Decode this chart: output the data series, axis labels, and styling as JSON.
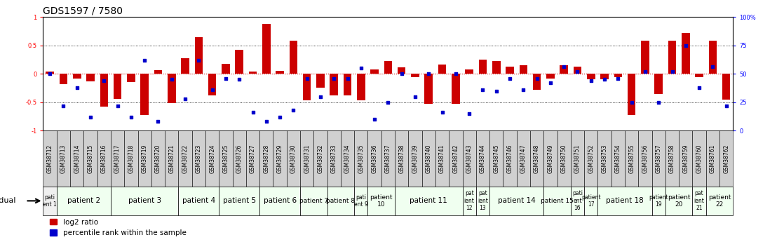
{
  "title": "GDS1597 / 7580",
  "samples": [
    "GSM38712",
    "GSM38713",
    "GSM38714",
    "GSM38715",
    "GSM38716",
    "GSM38717",
    "GSM38718",
    "GSM38719",
    "GSM38720",
    "GSM38721",
    "GSM38722",
    "GSM38723",
    "GSM38724",
    "GSM38725",
    "GSM38726",
    "GSM38727",
    "GSM38728",
    "GSM38729",
    "GSM38730",
    "GSM38731",
    "GSM38732",
    "GSM38733",
    "GSM38734",
    "GSM38735",
    "GSM38736",
    "GSM38737",
    "GSM38738",
    "GSM38739",
    "GSM38740",
    "GSM38741",
    "GSM38742",
    "GSM38743",
    "GSM38744",
    "GSM38745",
    "GSM38746",
    "GSM38747",
    "GSM38748",
    "GSM38749",
    "GSM38750",
    "GSM38751",
    "GSM38752",
    "GSM38753",
    "GSM38754",
    "GSM38755",
    "GSM38756",
    "GSM38757",
    "GSM38758",
    "GSM38759",
    "GSM38760",
    "GSM38761",
    "GSM38762"
  ],
  "log2_ratio": [
    0.04,
    -0.18,
    -0.08,
    -0.13,
    -0.58,
    -0.44,
    -0.15,
    -0.72,
    0.06,
    -0.52,
    0.27,
    0.64,
    -0.38,
    0.18,
    0.42,
    0.04,
    0.88,
    0.05,
    0.58,
    -0.46,
    -0.25,
    -0.38,
    -0.38,
    -0.46,
    0.08,
    0.22,
    0.11,
    -0.06,
    -0.53,
    0.16,
    -0.53,
    0.08,
    0.25,
    0.22,
    0.13,
    0.15,
    -0.28,
    -0.08,
    0.15,
    0.13,
    -0.1,
    -0.1,
    -0.06,
    -0.72,
    0.58,
    -0.35,
    0.58,
    0.72,
    -0.06,
    0.58,
    -0.45
  ],
  "pct_rank": [
    0.5,
    0.22,
    0.38,
    0.12,
    0.44,
    0.22,
    0.12,
    0.62,
    0.08,
    0.45,
    0.28,
    0.62,
    0.36,
    0.46,
    0.45,
    0.16,
    0.08,
    0.12,
    0.18,
    0.46,
    0.3,
    0.46,
    0.46,
    0.55,
    0.1,
    0.25,
    0.5,
    0.3,
    0.5,
    0.16,
    0.5,
    0.15,
    0.36,
    0.35,
    0.46,
    0.36,
    0.46,
    0.42,
    0.56,
    0.52,
    0.44,
    0.45,
    0.46,
    0.25,
    0.52,
    0.25,
    0.52,
    0.75,
    0.38,
    0.56,
    0.22
  ],
  "patients": [
    {
      "label": "pati\nent 1",
      "start": 0,
      "end": 1,
      "color": "#f0f0f0"
    },
    {
      "label": "patient 2",
      "start": 1,
      "end": 5,
      "color": "#f0fff0"
    },
    {
      "label": "patient 3",
      "start": 5,
      "end": 10,
      "color": "#f0fff0"
    },
    {
      "label": "patient 4",
      "start": 10,
      "end": 13,
      "color": "#f0fff0"
    },
    {
      "label": "patient 5",
      "start": 13,
      "end": 16,
      "color": "#f0fff0"
    },
    {
      "label": "patient 6",
      "start": 16,
      "end": 19,
      "color": "#f0fff0"
    },
    {
      "label": "patient 7",
      "start": 19,
      "end": 21,
      "color": "#f0fff0"
    },
    {
      "label": "patient 8",
      "start": 21,
      "end": 23,
      "color": "#f0fff0"
    },
    {
      "label": "pati\nent 9",
      "start": 23,
      "end": 24,
      "color": "#f0fff0"
    },
    {
      "label": "patient\n10",
      "start": 24,
      "end": 26,
      "color": "#f0fff0"
    },
    {
      "label": "patient 11",
      "start": 26,
      "end": 31,
      "color": "#f0fff0"
    },
    {
      "label": "pat\nient\n12",
      "start": 31,
      "end": 32,
      "color": "#f0fff0"
    },
    {
      "label": "pat\nient\n13",
      "start": 32,
      "end": 33,
      "color": "#f0fff0"
    },
    {
      "label": "patient 14",
      "start": 33,
      "end": 37,
      "color": "#f0fff0"
    },
    {
      "label": "patient 15",
      "start": 37,
      "end": 39,
      "color": "#f0fff0"
    },
    {
      "label": "pati\nent\n16",
      "start": 39,
      "end": 40,
      "color": "#f0fff0"
    },
    {
      "label": "patient\n17",
      "start": 40,
      "end": 41,
      "color": "#f0fff0"
    },
    {
      "label": "patient 18",
      "start": 41,
      "end": 45,
      "color": "#f0fff0"
    },
    {
      "label": "patient\n19",
      "start": 45,
      "end": 46,
      "color": "#f0fff0"
    },
    {
      "label": "patient\n20",
      "start": 46,
      "end": 48,
      "color": "#f0fff0"
    },
    {
      "label": "pat\nient\n21",
      "start": 48,
      "end": 49,
      "color": "#f0fff0"
    },
    {
      "label": "patient\n22",
      "start": 49,
      "end": 51,
      "color": "#f0fff0"
    }
  ],
  "ylim": [
    -1.0,
    1.0
  ],
  "yticks_left": [
    -1.0,
    -0.5,
    0.0,
    0.5,
    1.0
  ],
  "yticks_right": [
    0,
    25,
    50,
    75,
    100
  ],
  "bar_color": "#cc0000",
  "dot_color": "#0000cc",
  "background_color": "#ffffff",
  "sample_box_color": "#d0d0d0",
  "title_fontsize": 10,
  "tick_fontsize": 6,
  "sample_fontsize": 5.5,
  "patient_fontsize": 7.5
}
